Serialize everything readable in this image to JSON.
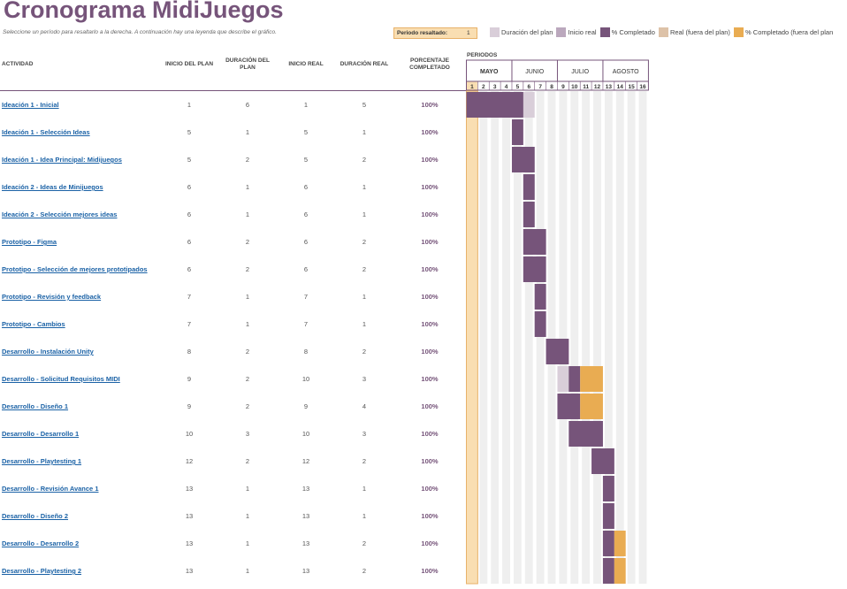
{
  "title": "Cronograma MidiJuegos",
  "subtitle": "Seleccione un período para resaltarlo a la derecha.  A continuación hay una leyenda que describe el gráfico.",
  "period_selector": {
    "label": "Periodo resaltado:",
    "value": "1"
  },
  "legend": [
    {
      "label": "Duración del plan",
      "color": "#d9ced9"
    },
    {
      "label": "Inicio real",
      "color": "#bba8bd"
    },
    {
      "label": "% Completado",
      "color": "#76547a"
    },
    {
      "label": "Real (fuera del plan)",
      "color": "#ddc2a8"
    },
    {
      "label": "% Completado (fuera del plan",
      "color": "#e9ac52"
    }
  ],
  "headers": {
    "activity": "ACTIVIDAD",
    "plan_start": "INICIO DEL PLAN",
    "plan_duration": "DURACIÓN DEL PLAN",
    "actual_start": "INICIO REAL",
    "actual_duration": "DURACIÓN REAL",
    "percent": "PORCENTAJE COMPLETADO",
    "periods": "PERIODOS"
  },
  "months": [
    "MAYO",
    "JUNIO",
    "JULIO",
    "AGOSTO"
  ],
  "periods": [
    "1",
    "2",
    "3",
    "4",
    "5",
    "6",
    "7",
    "8",
    "9",
    "10",
    "11",
    "12",
    "13",
    "14",
    "15",
    "16"
  ],
  "highlighted_period": 1,
  "colors": {
    "plan": "#d9ced9",
    "actual_start": "#bba8bd",
    "complete": "#76547a",
    "actual_out": "#ddc2a8",
    "complete_out": "#e9ac52",
    "highlight": "#f9deb2",
    "highlight_border": "#e8b26a",
    "stripe": "#efefef",
    "accent": "#76547a"
  },
  "activities": [
    {
      "name": "Ideación 1 - Inicial",
      "plan_start": 1,
      "plan_duration": 6,
      "actual_start": 1,
      "actual_duration": 5,
      "percent": "100%"
    },
    {
      "name": "Ideación 1 - Selección Ideas",
      "plan_start": 5,
      "plan_duration": 1,
      "actual_start": 5,
      "actual_duration": 1,
      "percent": "100%"
    },
    {
      "name": "Ideación 1 - Idea Principal: Midijuegos",
      "plan_start": 5,
      "plan_duration": 2,
      "actual_start": 5,
      "actual_duration": 2,
      "percent": "100%"
    },
    {
      "name": "Ideación 2 - Ideas de Minijuegos",
      "plan_start": 6,
      "plan_duration": 1,
      "actual_start": 6,
      "actual_duration": 1,
      "percent": "100%"
    },
    {
      "name": "Ideación 2 - Selección mejores ideas",
      "plan_start": 6,
      "plan_duration": 1,
      "actual_start": 6,
      "actual_duration": 1,
      "percent": "100%"
    },
    {
      "name": "Prototipo - Figma",
      "plan_start": 6,
      "plan_duration": 2,
      "actual_start": 6,
      "actual_duration": 2,
      "percent": "100%"
    },
    {
      "name": "Prototipo - Selección de mejores prototipados",
      "plan_start": 6,
      "plan_duration": 2,
      "actual_start": 6,
      "actual_duration": 2,
      "percent": "100%"
    },
    {
      "name": "Prototipo - Revisión y feedback",
      "plan_start": 7,
      "plan_duration": 1,
      "actual_start": 7,
      "actual_duration": 1,
      "percent": "100%"
    },
    {
      "name": "Prototipo - Cambios",
      "plan_start": 7,
      "plan_duration": 1,
      "actual_start": 7,
      "actual_duration": 1,
      "percent": "100%"
    },
    {
      "name": "Desarrollo - Instalación Unity",
      "plan_start": 8,
      "plan_duration": 2,
      "actual_start": 8,
      "actual_duration": 2,
      "percent": "100%"
    },
    {
      "name": "Desarrollo - Solicitud Requisitos MIDI",
      "plan_start": 9,
      "plan_duration": 2,
      "actual_start": 10,
      "actual_duration": 3,
      "percent": "100%"
    },
    {
      "name": "Desarrollo - Diseño 1",
      "plan_start": 9,
      "plan_duration": 2,
      "actual_start": 9,
      "actual_duration": 4,
      "percent": "100%"
    },
    {
      "name": "Desarrollo - Desarrollo 1",
      "plan_start": 10,
      "plan_duration": 3,
      "actual_start": 10,
      "actual_duration": 3,
      "percent": "100%"
    },
    {
      "name": "Desarrollo - Playtesting 1",
      "plan_start": 12,
      "plan_duration": 2,
      "actual_start": 12,
      "actual_duration": 2,
      "percent": "100%"
    },
    {
      "name": "Desarrollo - Revisión Avance 1",
      "plan_start": 13,
      "plan_duration": 1,
      "actual_start": 13,
      "actual_duration": 1,
      "percent": "100%"
    },
    {
      "name": "Desarrollo - Diseño 2",
      "plan_start": 13,
      "plan_duration": 1,
      "actual_start": 13,
      "actual_duration": 1,
      "percent": "100%"
    },
    {
      "name": "Desarrollo - Desarrollo 2",
      "plan_start": 13,
      "plan_duration": 1,
      "actual_start": 13,
      "actual_duration": 2,
      "percent": "100%"
    },
    {
      "name": "Desarrollo - Playtesting 2",
      "plan_start": 13,
      "plan_duration": 1,
      "actual_start": 13,
      "actual_duration": 2,
      "percent": "100%"
    }
  ]
}
